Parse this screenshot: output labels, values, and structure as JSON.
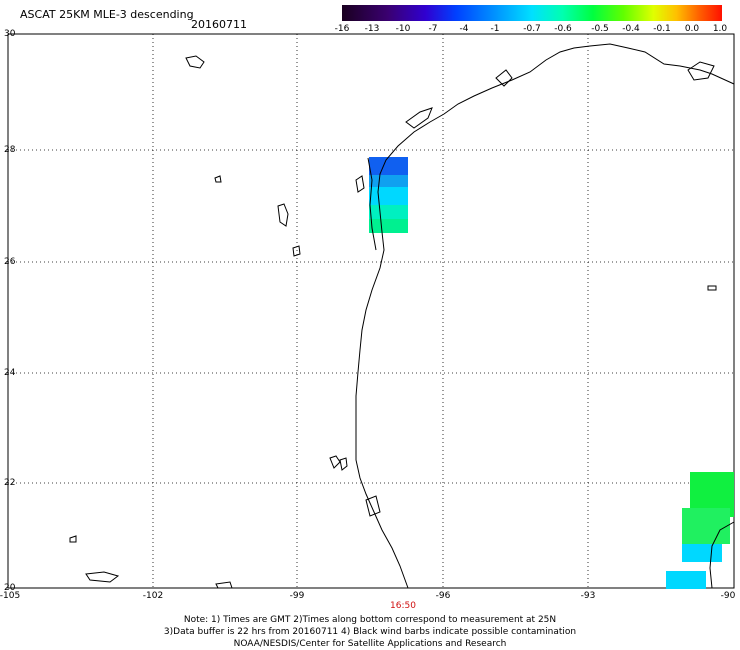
{
  "header": {
    "title": "ASCAT 25KM MLE-3 descending",
    "date": "20160711"
  },
  "colorbar": {
    "labels": [
      "-16",
      "-13",
      "-10",
      "-7",
      "-4",
      "-1",
      "-0.7",
      "-0.6",
      "-0.5",
      "-0.4",
      "-0.1",
      "0.0",
      "1.0"
    ]
  },
  "axes": {
    "y_labels": [
      "30",
      "28",
      "26",
      "24",
      "22",
      "20"
    ],
    "x_labels": [
      "-105",
      "-102",
      "-99",
      "-96",
      "-93",
      "-90"
    ],
    "time_label": "16:50"
  },
  "footer": {
    "line1": "Note: 1) Times are GMT 2)Times along bottom correspond to measurement at 25N",
    "line2": "3)Data buffer is 22 hrs from 20160711 4) Black wind barbs indicate possible contamination",
    "line3": "NOAA/NESDIS/Center for Satellite Applications and Research"
  },
  "colors": {
    "blue": "#1060f0",
    "light_blue": "#10a0f0",
    "cyan": "#00d8ff",
    "aqua": "#00f0c0",
    "teal_green": "#00f090",
    "green": "#10f040",
    "bright_green": "#30f030"
  }
}
